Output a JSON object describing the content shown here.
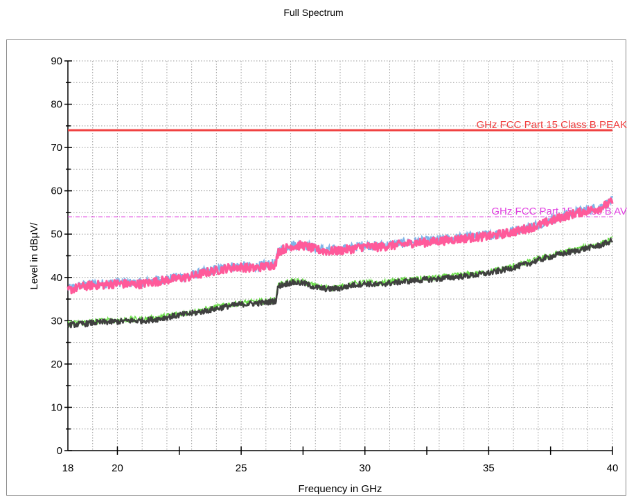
{
  "chart_data": {
    "type": "line",
    "title": "Full Spectrum",
    "xlabel": "Frequency in GHz",
    "ylabel": "Level in dBµV/",
    "xlim": [
      18,
      40
    ],
    "ylim": [
      0,
      90
    ],
    "x_ticks": [
      18,
      20,
      25,
      30,
      35,
      40
    ],
    "y_ticks": [
      0,
      10,
      20,
      30,
      40,
      50,
      60,
      70,
      80,
      90
    ],
    "grid": true,
    "limit_lines": [
      {
        "label": "GHz FCC Part 15 Class B PEAK",
        "value": 74,
        "color": "#f04040",
        "style": "solid"
      },
      {
        "label": "GHz FCC Part 15 Class B AV",
        "value": 54,
        "color": "#e040e0",
        "style": "dashdot"
      }
    ],
    "series": [
      {
        "role": "peak",
        "color": "#ff5a9a",
        "shadow_color": "#7fb3e8",
        "x": [
          18,
          18.5,
          19,
          19.5,
          20,
          20.5,
          21,
          21.5,
          22,
          22.5,
          23,
          23.5,
          24,
          24.5,
          25,
          25.5,
          26,
          26.4,
          26.5,
          27,
          27.5,
          28,
          28.5,
          29,
          29.5,
          30,
          30.5,
          31,
          31.5,
          32,
          32.5,
          33,
          33.5,
          34,
          34.5,
          35,
          35.5,
          36,
          36.5,
          37,
          37.5,
          38,
          38.5,
          39,
          39.5,
          40
        ],
        "y": [
          37,
          37.8,
          38.2,
          38.3,
          38.6,
          38.4,
          38.5,
          39,
          39.4,
          39.8,
          40.2,
          41,
          41.6,
          42.2,
          42.4,
          42.1,
          42.6,
          43,
          46,
          47.2,
          47.4,
          46.5,
          46,
          46.2,
          46.6,
          47.2,
          47,
          47.3,
          47.6,
          48,
          48.1,
          48.4,
          48.7,
          49,
          49.3,
          49.5,
          50,
          50.5,
          51.2,
          52,
          53,
          54,
          54.8,
          55.4,
          56,
          57.5
        ]
      },
      {
        "role": "average",
        "color": "#404040",
        "shadow_color": "#66dd44",
        "x": [
          18,
          18.5,
          19,
          19.5,
          20,
          20.5,
          21,
          21.5,
          22,
          22.5,
          23,
          23.5,
          24,
          24.5,
          25,
          25.5,
          26,
          26.4,
          26.5,
          27,
          27.5,
          28,
          28.5,
          29,
          29.5,
          30,
          30.5,
          31,
          31.5,
          32,
          32.5,
          33,
          33.5,
          34,
          34.5,
          35,
          35.5,
          36,
          36.5,
          37,
          37.5,
          38,
          38.5,
          39,
          39.5,
          40
        ],
        "y": [
          29,
          29.2,
          29.5,
          29.7,
          29.8,
          30,
          30,
          30.3,
          30.8,
          31.3,
          31.7,
          32.2,
          32.8,
          33.4,
          33.8,
          34,
          34.2,
          34.6,
          38,
          38.8,
          38.7,
          37.7,
          37.3,
          37.5,
          38.2,
          38.6,
          38.3,
          38.7,
          39,
          39.3,
          39.5,
          39.7,
          40,
          40.3,
          40.6,
          41,
          41.6,
          42.3,
          43,
          44,
          44.8,
          45.5,
          46.1,
          46.8,
          47.4,
          48.5
        ]
      }
    ]
  }
}
